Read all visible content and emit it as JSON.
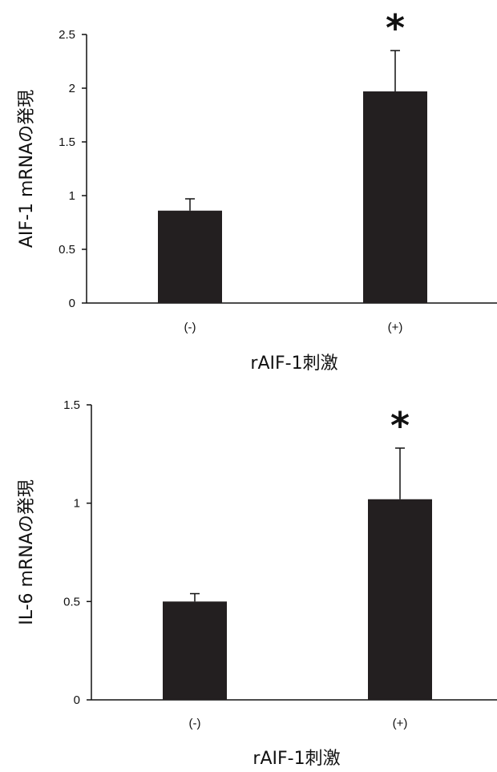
{
  "chart_data": [
    {
      "type": "bar",
      "categories": [
        "(-)",
        "(+)"
      ],
      "values": [
        0.86,
        1.97
      ],
      "errors": [
        0.11,
        0.38
      ],
      "significance": [
        "",
        "*"
      ],
      "ylim": [
        0,
        2.5
      ],
      "yticks": [
        "0",
        "0.5",
        "1",
        "1.5",
        "2",
        "2.5"
      ],
      "ylabel": "AIF-1 mRNAの発現",
      "xlabel": "rAIF-1刺激",
      "bar_color": "#231f20"
    },
    {
      "type": "bar",
      "categories": [
        "(-)",
        "(+)"
      ],
      "values": [
        0.5,
        1.02
      ],
      "errors": [
        0.04,
        0.26
      ],
      "significance": [
        "",
        "*"
      ],
      "ylim": [
        0,
        1.5
      ],
      "yticks": [
        "0",
        "0.5",
        "1",
        "1.5"
      ],
      "ylabel": "IL-6 mRNAの発現",
      "xlabel": "rAIF-1刺激",
      "bar_color": "#231f20"
    }
  ]
}
